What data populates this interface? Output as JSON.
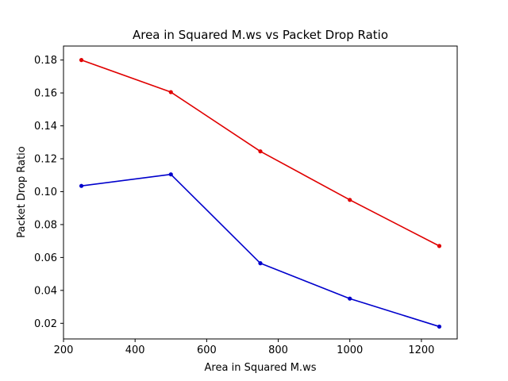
{
  "chart_data": {
    "type": "line",
    "title": "Area in Squared M.ws vs Packet Drop Ratio",
    "xlabel": "Area in Squared M.ws",
    "ylabel": "Packet Drop Ratio",
    "xlim": [
      200,
      1300
    ],
    "ylim": [
      0.0105,
      0.1885
    ],
    "xticks": [
      200,
      400,
      600,
      800,
      1000,
      1200
    ],
    "yticks": [
      0.02,
      0.04,
      0.06,
      0.08,
      0.1,
      0.12,
      0.14,
      0.16,
      0.18
    ],
    "xtick_labels": [
      "200",
      "400",
      "600",
      "800",
      "1000",
      "1200"
    ],
    "ytick_labels": [
      "0.02",
      "0.04",
      "0.06",
      "0.08",
      "0.10",
      "0.12",
      "0.14",
      "0.16",
      "0.18"
    ],
    "x": [
      250,
      500,
      750,
      1000,
      1250
    ],
    "grid": false,
    "series": [
      {
        "color": "#e00000",
        "values": [
          0.18,
          0.1605,
          0.1245,
          0.095,
          0.067
        ]
      },
      {
        "color": "#0000cc",
        "values": [
          0.1035,
          0.1105,
          0.0565,
          0.035,
          0.018
        ]
      }
    ]
  }
}
